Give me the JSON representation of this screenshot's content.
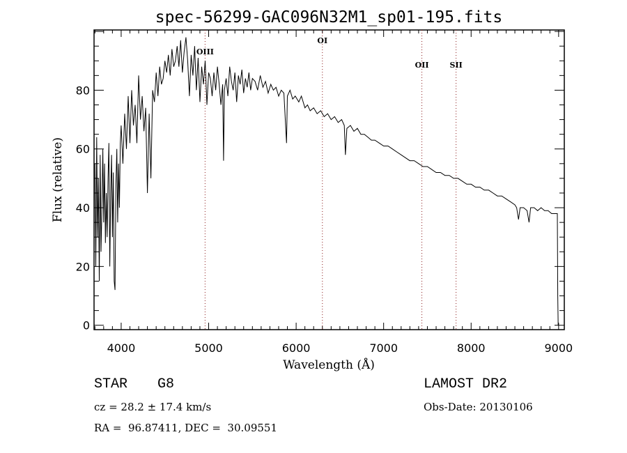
{
  "chart_data": {
    "type": "line",
    "title": "spec-56299-GAC096N32M1_sp01-195.fits",
    "xlabel": "Wavelength (Å)",
    "ylabel": "Flux (relative)",
    "xlim": [
      3690,
      9065
    ],
    "ylim": [
      -1.5,
      100.5
    ],
    "xticks": [
      4000,
      5000,
      6000,
      7000,
      8000,
      9000
    ],
    "yticks": [
      0,
      20,
      40,
      60,
      80
    ],
    "grid": false,
    "line_color": "#000000",
    "marker_color": "#8b1a1a",
    "lines": [
      {
        "label": "OIII",
        "wavelength": 4959
      },
      {
        "label": "OI",
        "wavelength": 6300
      },
      {
        "label": "OII",
        "wavelength": 7437
      },
      {
        "label": "SII",
        "wavelength": 7828
      }
    ],
    "series": [
      {
        "name": "flux",
        "points": [
          [
            3700,
            55
          ],
          [
            3710,
            20
          ],
          [
            3720,
            64
          ],
          [
            3730,
            30
          ],
          [
            3740,
            50
          ],
          [
            3750,
            15
          ],
          [
            3760,
            58
          ],
          [
            3770,
            25
          ],
          [
            3780,
            40
          ],
          [
            3790,
            60
          ],
          [
            3800,
            35
          ],
          [
            3810,
            55
          ],
          [
            3820,
            28
          ],
          [
            3830,
            45
          ],
          [
            3840,
            30
          ],
          [
            3850,
            50
          ],
          [
            3860,
            62
          ],
          [
            3870,
            20
          ],
          [
            3880,
            45
          ],
          [
            3890,
            58
          ],
          [
            3900,
            30
          ],
          [
            3910,
            52
          ],
          [
            3920,
            15
          ],
          [
            3930,
            12
          ],
          [
            3940,
            48
          ],
          [
            3950,
            60
          ],
          [
            3960,
            35
          ],
          [
            3970,
            55
          ],
          [
            3980,
            40
          ],
          [
            3990,
            62
          ],
          [
            4000,
            68
          ],
          [
            4020,
            55
          ],
          [
            4040,
            72
          ],
          [
            4060,
            60
          ],
          [
            4080,
            78
          ],
          [
            4100,
            62
          ],
          [
            4120,
            80
          ],
          [
            4140,
            68
          ],
          [
            4160,
            75
          ],
          [
            4180,
            62
          ],
          [
            4200,
            85
          ],
          [
            4220,
            70
          ],
          [
            4240,
            78
          ],
          [
            4260,
            66
          ],
          [
            4280,
            74
          ],
          [
            4300,
            45
          ],
          [
            4320,
            72
          ],
          [
            4340,
            50
          ],
          [
            4360,
            80
          ],
          [
            4380,
            76
          ],
          [
            4400,
            86
          ],
          [
            4420,
            78
          ],
          [
            4440,
            88
          ],
          [
            4460,
            82
          ],
          [
            4480,
            84
          ],
          [
            4500,
            90
          ],
          [
            4520,
            86
          ],
          [
            4540,
            92
          ],
          [
            4560,
            85
          ],
          [
            4580,
            94
          ],
          [
            4600,
            88
          ],
          [
            4620,
            90
          ],
          [
            4640,
            95
          ],
          [
            4660,
            88
          ],
          [
            4680,
            97
          ],
          [
            4700,
            86
          ],
          [
            4720,
            93
          ],
          [
            4740,
            98
          ],
          [
            4760,
            90
          ],
          [
            4780,
            78
          ],
          [
            4800,
            92
          ],
          [
            4820,
            85
          ],
          [
            4840,
            95
          ],
          [
            4860,
            80
          ],
          [
            4880,
            91
          ],
          [
            4900,
            76
          ],
          [
            4920,
            88
          ],
          [
            4940,
            82
          ],
          [
            4960,
            90
          ],
          [
            4980,
            75
          ],
          [
            5000,
            86
          ],
          [
            5020,
            84
          ],
          [
            5040,
            78
          ],
          [
            5060,
            86
          ],
          [
            5080,
            80
          ],
          [
            5100,
            88
          ],
          [
            5120,
            82
          ],
          [
            5140,
            75
          ],
          [
            5160,
            82
          ],
          [
            5170,
            56
          ],
          [
            5180,
            80
          ],
          [
            5200,
            84
          ],
          [
            5220,
            78
          ],
          [
            5240,
            88
          ],
          [
            5260,
            83
          ],
          [
            5280,
            80
          ],
          [
            5300,
            86
          ],
          [
            5320,
            76
          ],
          [
            5340,
            85
          ],
          [
            5360,
            82
          ],
          [
            5380,
            87
          ],
          [
            5400,
            79
          ],
          [
            5420,
            84
          ],
          [
            5440,
            81
          ],
          [
            5460,
            86
          ],
          [
            5480,
            80
          ],
          [
            5500,
            84
          ],
          [
            5530,
            83
          ],
          [
            5560,
            80
          ],
          [
            5590,
            85
          ],
          [
            5620,
            81
          ],
          [
            5650,
            83
          ],
          [
            5680,
            79
          ],
          [
            5710,
            82
          ],
          [
            5740,
            80
          ],
          [
            5770,
            81
          ],
          [
            5800,
            78
          ],
          [
            5830,
            80
          ],
          [
            5860,
            79
          ],
          [
            5890,
            62
          ],
          [
            5900,
            78
          ],
          [
            5930,
            80
          ],
          [
            5960,
            77
          ],
          [
            5990,
            78
          ],
          [
            6030,
            76
          ],
          [
            6060,
            78
          ],
          [
            6100,
            74
          ],
          [
            6130,
            75
          ],
          [
            6160,
            73
          ],
          [
            6200,
            74
          ],
          [
            6240,
            72
          ],
          [
            6280,
            73
          ],
          [
            6320,
            71
          ],
          [
            6360,
            72
          ],
          [
            6400,
            70
          ],
          [
            6440,
            71
          ],
          [
            6480,
            69
          ],
          [
            6520,
            70
          ],
          [
            6550,
            68
          ],
          [
            6563,
            58
          ],
          [
            6580,
            67
          ],
          [
            6620,
            68
          ],
          [
            6660,
            66
          ],
          [
            6700,
            67
          ],
          [
            6740,
            65
          ],
          [
            6780,
            65
          ],
          [
            6820,
            64
          ],
          [
            6860,
            63
          ],
          [
            6900,
            63
          ],
          [
            6950,
            62
          ],
          [
            7000,
            61
          ],
          [
            7050,
            61
          ],
          [
            7100,
            60
          ],
          [
            7150,
            59
          ],
          [
            7200,
            58
          ],
          [
            7250,
            57
          ],
          [
            7300,
            56
          ],
          [
            7350,
            56
          ],
          [
            7400,
            55
          ],
          [
            7450,
            54
          ],
          [
            7500,
            54
          ],
          [
            7550,
            53
          ],
          [
            7600,
            52
          ],
          [
            7650,
            52
          ],
          [
            7700,
            51
          ],
          [
            7750,
            51
          ],
          [
            7800,
            50
          ],
          [
            7850,
            50
          ],
          [
            7900,
            49
          ],
          [
            7950,
            48
          ],
          [
            8000,
            48
          ],
          [
            8050,
            47
          ],
          [
            8100,
            47
          ],
          [
            8150,
            46
          ],
          [
            8200,
            46
          ],
          [
            8250,
            45
          ],
          [
            8300,
            44
          ],
          [
            8350,
            44
          ],
          [
            8400,
            43
          ],
          [
            8450,
            42
          ],
          [
            8500,
            41
          ],
          [
            8520,
            40
          ],
          [
            8542,
            36
          ],
          [
            8560,
            40
          ],
          [
            8600,
            40
          ],
          [
            8640,
            39
          ],
          [
            8662,
            35
          ],
          [
            8680,
            40
          ],
          [
            8720,
            40
          ],
          [
            8760,
            39
          ],
          [
            8800,
            40
          ],
          [
            8840,
            39
          ],
          [
            8880,
            39
          ],
          [
            8920,
            38
          ],
          [
            8960,
            38
          ],
          [
            8985,
            38
          ],
          [
            8990,
            10
          ],
          [
            8995,
            0
          ]
        ]
      }
    ]
  },
  "footer": {
    "object_type": "STAR",
    "subclass": "G8",
    "survey": "LAMOST DR2",
    "cz": "cz = 28.2 ± 17.4 km/s",
    "obs_date": "Obs-Date: 20130106",
    "coords": "RA =  96.87411, DEC =  30.09551"
  }
}
